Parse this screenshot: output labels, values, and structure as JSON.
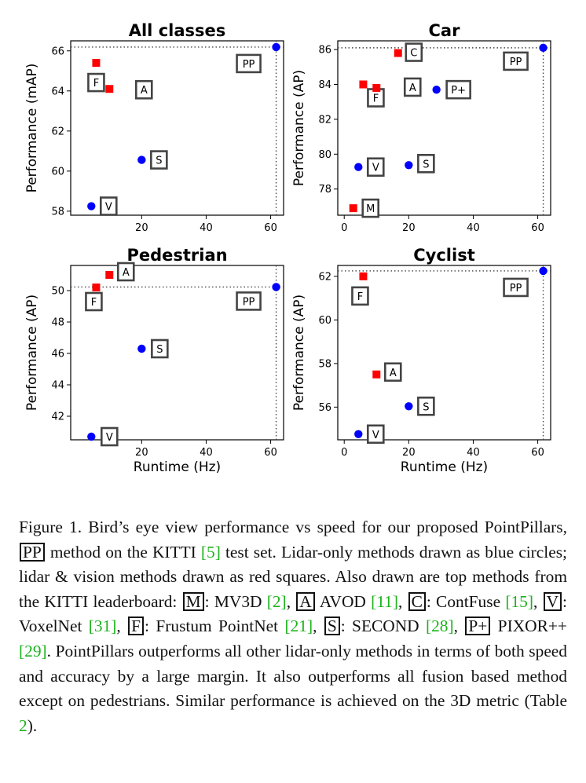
{
  "chart_data": [
    {
      "type": "scatter",
      "title": "All classes",
      "xlabel": "",
      "ylabel": "Performance (mAP)",
      "xlim": [
        -2,
        64
      ],
      "ylim": [
        57.8,
        66.5
      ],
      "xticks": [
        20,
        40,
        60
      ],
      "xtick_labels": [
        "20",
        "40",
        "60"
      ],
      "yticks": [
        58,
        60,
        62,
        64,
        66
      ],
      "ytick_labels": [
        "58",
        "60",
        "62",
        "64",
        "66"
      ],
      "reference": {
        "x": 61.7,
        "y": 66.19
      },
      "points": [
        {
          "label": "F",
          "x": 5.9,
          "y": 65.4,
          "kind": "lidar-vision"
        },
        {
          "label": "A",
          "x": 10.0,
          "y": 64.1,
          "kind": "lidar-vision"
        },
        {
          "label": "S",
          "x": 20.0,
          "y": 60.56,
          "kind": "lidar"
        },
        {
          "label": "V",
          "x": 4.4,
          "y": 58.25,
          "kind": "lidar"
        },
        {
          "label": "PP",
          "x": 61.7,
          "y": 66.19,
          "kind": "lidar"
        }
      ]
    },
    {
      "type": "scatter",
      "title": "Car",
      "xlabel": "",
      "ylabel": "Performance (AP)",
      "xlim": [
        -2,
        64
      ],
      "ylim": [
        76.5,
        86.5
      ],
      "xticks": [
        0,
        20,
        40,
        60
      ],
      "xtick_labels": [
        "0",
        "20",
        "40",
        "60"
      ],
      "yticks": [
        78,
        80,
        82,
        84,
        86
      ],
      "ytick_labels": [
        "78",
        "80",
        "82",
        "84",
        "86"
      ],
      "reference": {
        "x": 61.7,
        "y": 86.1
      },
      "points": [
        {
          "label": "C",
          "x": 16.7,
          "y": 85.8,
          "kind": "lidar-vision"
        },
        {
          "label": "F",
          "x": 5.9,
          "y": 84.0,
          "kind": "lidar-vision"
        },
        {
          "label": "A",
          "x": 10.0,
          "y": 83.8,
          "kind": "lidar-vision"
        },
        {
          "label": "P+",
          "x": 28.6,
          "y": 83.7,
          "kind": "lidar"
        },
        {
          "label": "V",
          "x": 4.4,
          "y": 79.26,
          "kind": "lidar"
        },
        {
          "label": "S",
          "x": 20.0,
          "y": 79.37,
          "kind": "lidar"
        },
        {
          "label": "M",
          "x": 2.8,
          "y": 76.9,
          "kind": "lidar-vision"
        },
        {
          "label": "PP",
          "x": 61.7,
          "y": 86.1,
          "kind": "lidar"
        }
      ]
    },
    {
      "type": "scatter",
      "title": "Pedestrian",
      "xlabel": "Runtime (Hz)",
      "ylabel": "Performance (AP)",
      "xlim": [
        -2,
        64
      ],
      "ylim": [
        40.5,
        51.6
      ],
      "xticks": [
        20,
        40,
        60
      ],
      "xtick_labels": [
        "20",
        "40",
        "60"
      ],
      "yticks": [
        42,
        44,
        46,
        48,
        50
      ],
      "ytick_labels": [
        "42",
        "44",
        "46",
        "48",
        "50"
      ],
      "reference": {
        "x": 61.7,
        "y": 50.23
      },
      "points": [
        {
          "label": "A",
          "x": 10.0,
          "y": 51.0,
          "kind": "lidar-vision"
        },
        {
          "label": "F",
          "x": 5.9,
          "y": 50.2,
          "kind": "lidar-vision"
        },
        {
          "label": "S",
          "x": 20.0,
          "y": 46.3,
          "kind": "lidar"
        },
        {
          "label": "V",
          "x": 4.4,
          "y": 40.7,
          "kind": "lidar"
        },
        {
          "label": "PP",
          "x": 61.7,
          "y": 50.23,
          "kind": "lidar"
        }
      ]
    },
    {
      "type": "scatter",
      "title": "Cyclist",
      "xlabel": "Runtime (Hz)",
      "ylabel": "Performance (AP)",
      "xlim": [
        -2,
        64
      ],
      "ylim": [
        54.5,
        62.5
      ],
      "xticks": [
        0,
        20,
        40,
        60
      ],
      "xtick_labels": [
        "0",
        "20",
        "40",
        "60"
      ],
      "yticks": [
        56,
        58,
        60,
        62
      ],
      "ytick_labels": [
        "56",
        "58",
        "60",
        "62"
      ],
      "reference": {
        "x": 61.7,
        "y": 62.25
      },
      "points": [
        {
          "label": "F",
          "x": 5.9,
          "y": 62.0,
          "kind": "lidar-vision"
        },
        {
          "label": "A",
          "x": 10.0,
          "y": 57.5,
          "kind": "lidar-vision"
        },
        {
          "label": "S",
          "x": 20.0,
          "y": 56.04,
          "kind": "lidar"
        },
        {
          "label": "V",
          "x": 4.4,
          "y": 54.76,
          "kind": "lidar"
        },
        {
          "label": "PP",
          "x": 61.7,
          "y": 62.25,
          "kind": "lidar"
        }
      ]
    }
  ],
  "colors": {
    "lidar": "#0000ff",
    "lidar-vision": "#ff0000",
    "box_border": "#444444",
    "reference_line": "#444444",
    "citation": "#1db31d"
  },
  "caption": {
    "figure_label": "Figure 1.",
    "t1": " Bird’s eye view performance vs speed for our proposed PointPillars, ",
    "pp_box": "PP",
    "t2": " method on the KITTI ",
    "ref5": "[5]",
    "t3": " test set. Lidar-only methods drawn as blue circles; lidar & vision methods drawn as red squares. Also drawn are top methods from the KITTI leaderboard: ",
    "m_box": "M",
    "t4": ": MV3D ",
    "ref2": "[2]",
    "t5": ", ",
    "a_box": "A",
    "t6": " AVOD ",
    "ref11": "[11]",
    "t7": ", ",
    "c_box": "C",
    "t8": ": ContFuse ",
    "ref15": "[15]",
    "t9": ", ",
    "v_box": "V",
    "t10": ": VoxelNet ",
    "ref31": "[31]",
    "t11": ", ",
    "f_box": "F",
    "t12": ": Frustum PointNet ",
    "ref21": "[21]",
    "t13": ", ",
    "s_box": "S",
    "t14": ": SECOND ",
    "ref28": "[28]",
    "t15": ", ",
    "p_box": "P+",
    "t16": " PIXOR++ ",
    "ref29": "[29]",
    "t17": ". PointPillars outperforms all other lidar-only methods in terms of both speed and accuracy by a large margin. It also outperforms all fusion based method except on pedestrians. Similar performance is achieved on the 3D metric (Table ",
    "ref_table2": "2",
    "t18": ")."
  }
}
